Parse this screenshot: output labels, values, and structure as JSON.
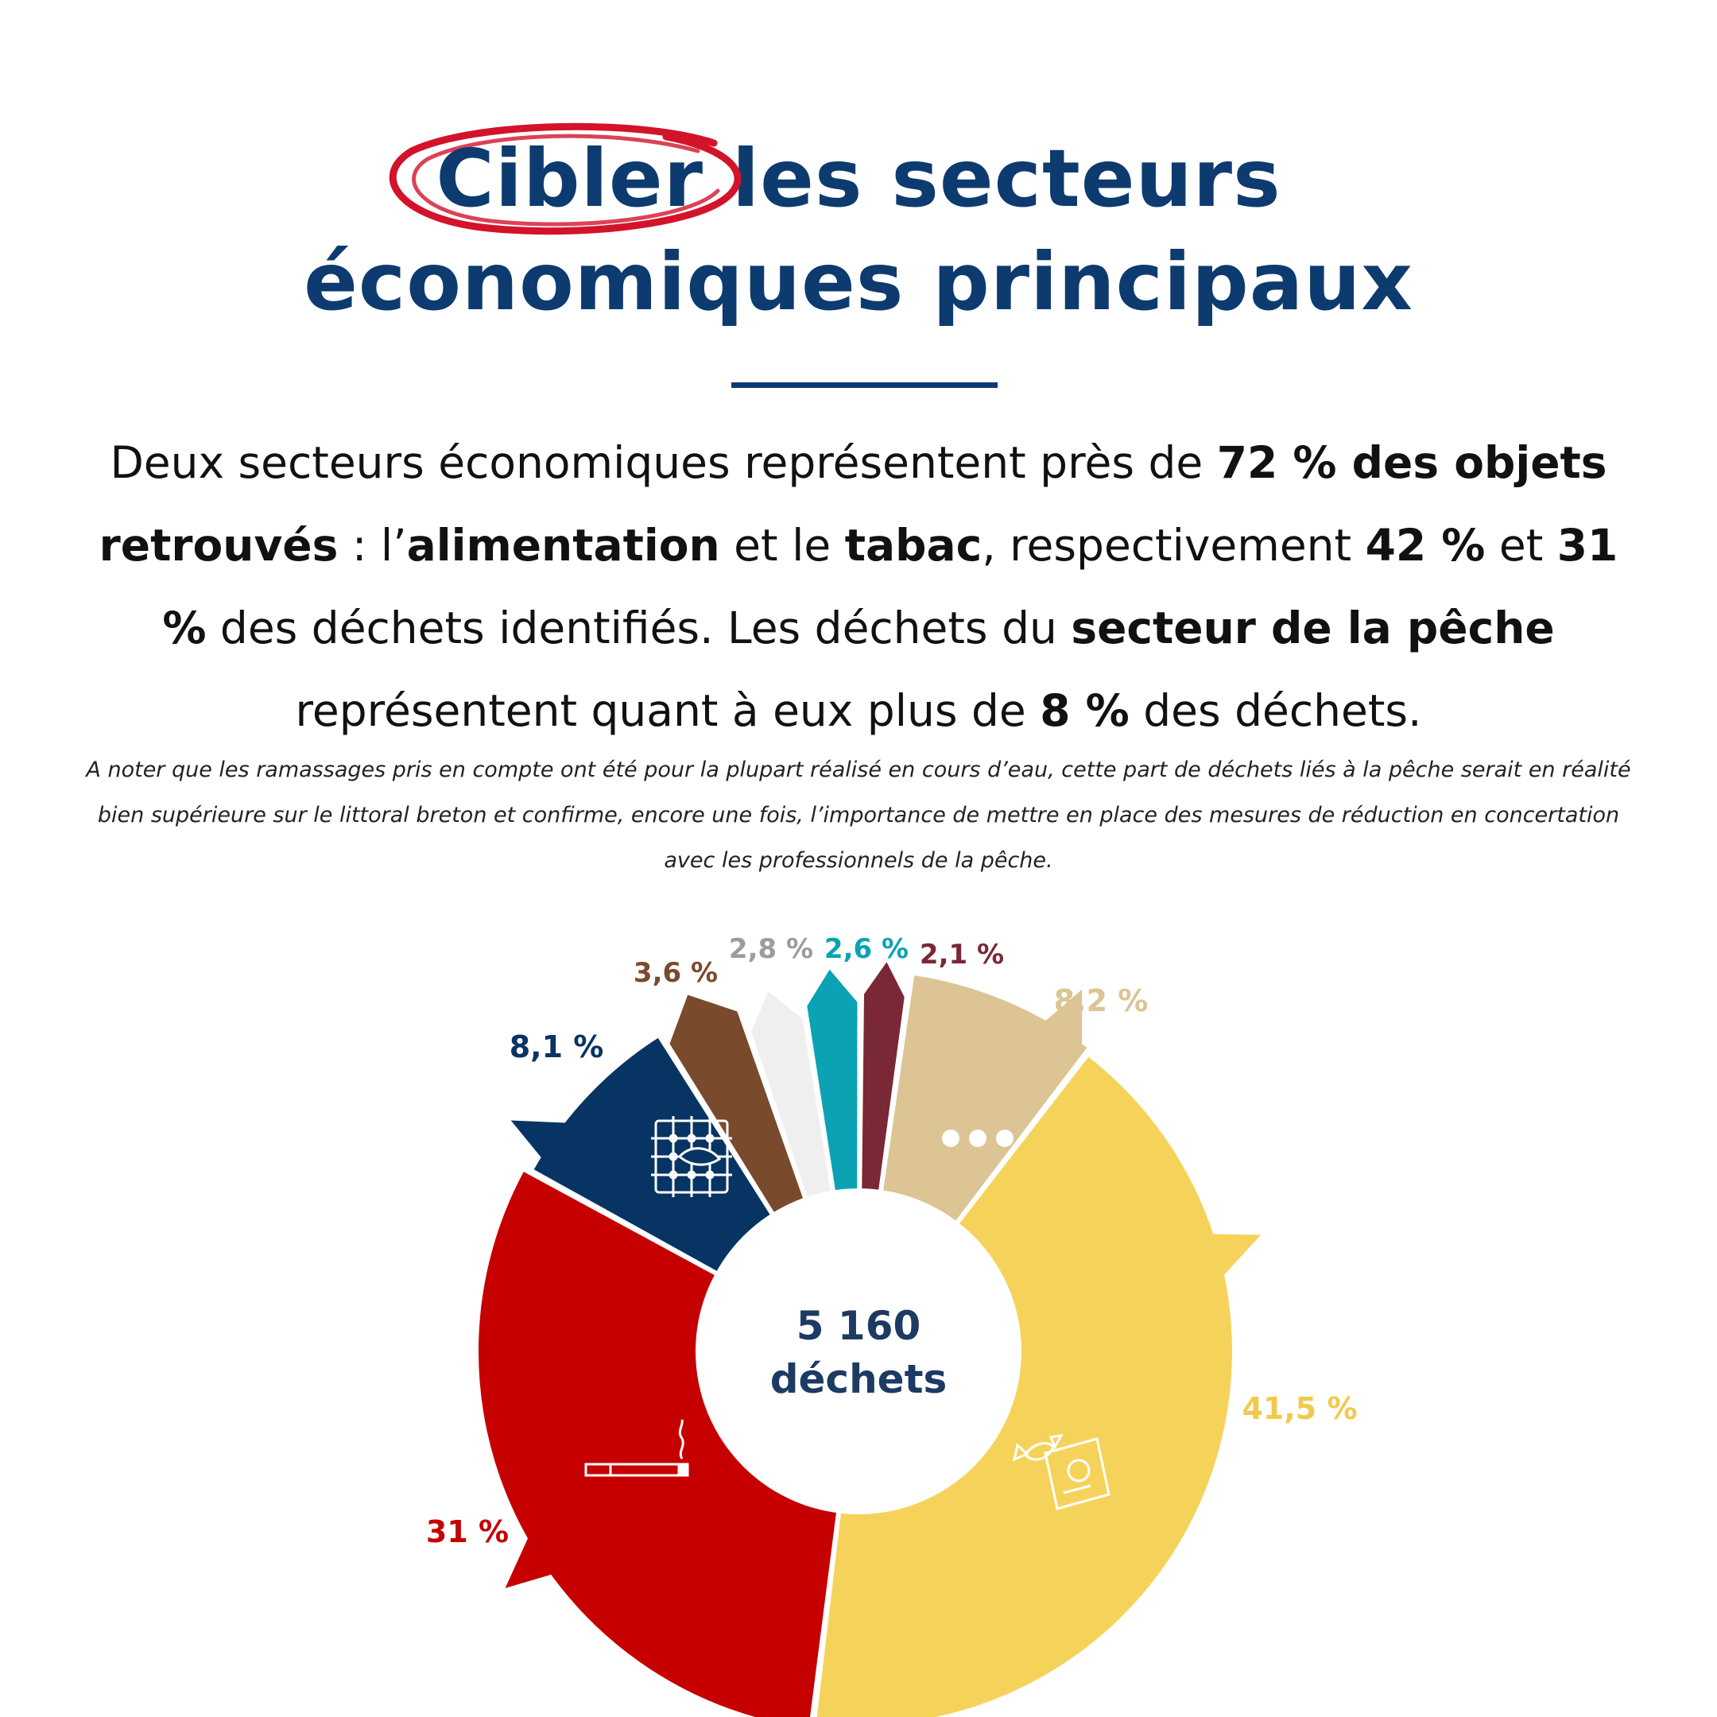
{
  "title": {
    "word_circled": "Cibler",
    "rest_line1": "les secteurs",
    "line2": "économiques principaux"
  },
  "paragraph": {
    "p1": "Deux secteurs économiques représentent près de ",
    "b1": "72 % des objets retrouvés",
    "p2": " : l’",
    "b2": "alimentation",
    "p3": " et le ",
    "b3": "tabac",
    "p4": ", respectivement ",
    "b4": "42 %",
    "p5": " et ",
    "b5": "31 %",
    "p6": " des déchets identifiés. Les déchets du ",
    "b6": "secteur de la pêche",
    "p7": " représentent quant à eux plus de ",
    "b7": "8 %",
    "p8": " des déchets."
  },
  "note": "A noter que les ramassages pris en compte ont été pour la plupart réalisé en cours d’eau, cette part de déchets liés à la pêche serait en réalité bien supérieure sur le littoral breton et confirme, encore une fois, l’importance de mettre en place des mesures de réduction en concertation avec les professionnels de la pêche.",
  "chart_data": {
    "type": "pie",
    "center_label": [
      "5 160",
      "déchets"
    ],
    "slices": [
      {
        "value": 8.2,
        "label": "8,2 %",
        "color": "#dcc494",
        "icon": "more-dots-icon",
        "exploded": true
      },
      {
        "value": 41.5,
        "label": "41,5 %",
        "color": "#f5d35b",
        "icon": "food-wrapper-icon",
        "exploded": false
      },
      {
        "value": 31,
        "label": "31 %",
        "color": "#c60000",
        "icon": "cigarette-icon",
        "exploded": false
      },
      {
        "value": 8.1,
        "label": "8,1 %",
        "color": "#073463",
        "icon": "fishing-net-icon",
        "exploded": true
      },
      {
        "value": 3.6,
        "label": "3,6 %",
        "color": "#7a4a2c",
        "icon": "",
        "exploded": true
      },
      {
        "value": 2.8,
        "label": "2,8 %",
        "color": "#efefef",
        "label_color": "#9c9c9c",
        "icon": "",
        "exploded": true
      },
      {
        "value": 2.6,
        "label": "2,6 %",
        "color": "#0ba3b3",
        "icon": "",
        "exploded": true
      },
      {
        "value": 2.1,
        "label": "2,1 %",
        "color": "#7a2836",
        "icon": "",
        "exploded": true
      }
    ]
  }
}
